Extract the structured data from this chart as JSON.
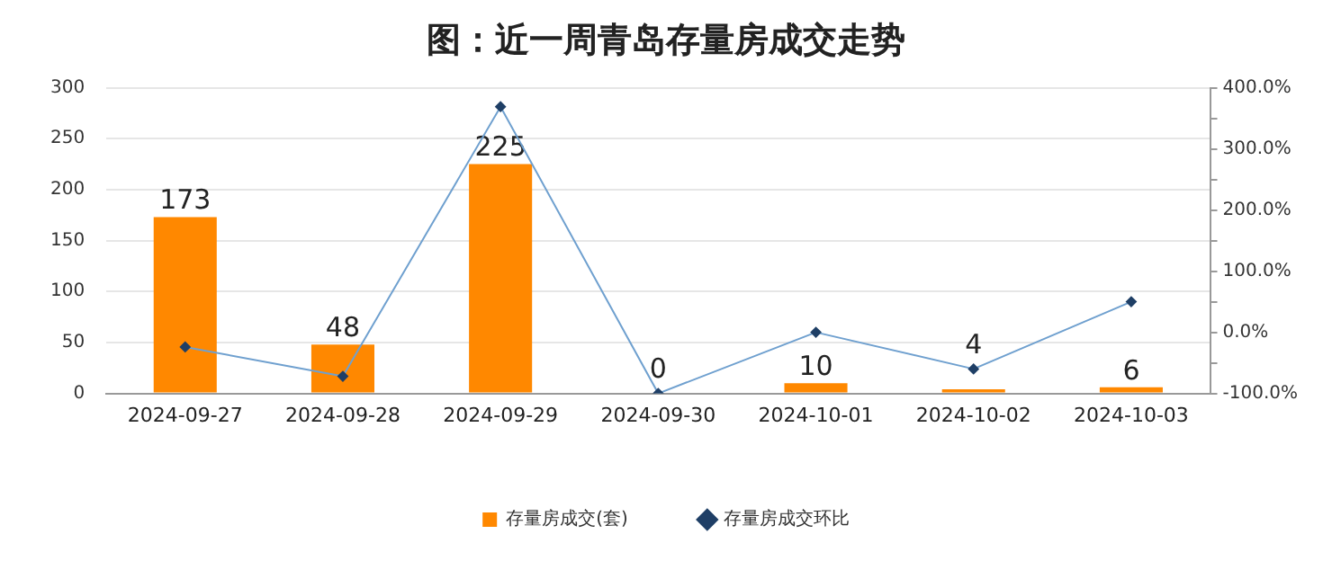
{
  "chart_data": {
    "type": "bar",
    "title": "图：近一周青岛存量房成交走势",
    "categories": [
      "2024-09-27",
      "2024-09-28",
      "2024-09-29",
      "2024-09-30",
      "2024-10-01",
      "2024-10-02",
      "2024-10-03"
    ],
    "series": [
      {
        "name": "存量房成交(套)",
        "color": "#ff8800",
        "values": [
          173,
          48,
          225,
          0,
          10,
          4,
          6
        ],
        "value_labels": [
          "173",
          "48",
          "225",
          "0",
          "10",
          "4",
          "6"
        ]
      },
      {
        "name": "存量房成交环比",
        "type": "line",
        "axis": "y2",
        "color": "#6fa0cf",
        "marker": "diamond",
        "values": [
          -24,
          -72,
          369,
          -100,
          0,
          -60,
          50
        ]
      }
    ],
    "ylim": [
      0,
      300
    ],
    "yticks": [
      0,
      50,
      100,
      150,
      200,
      250,
      300
    ],
    "y2lim": [
      -100,
      400
    ],
    "y2ticks": [
      {
        "value": -100,
        "label": "-100.0%"
      },
      {
        "value": -50,
        "label": null
      },
      {
        "value": 0,
        "label": "0.0%"
      },
      {
        "value": 50,
        "label": null
      },
      {
        "value": 100,
        "label": "100.0%"
      },
      {
        "value": 150,
        "label": null
      },
      {
        "value": 200,
        "label": "200.0%"
      },
      {
        "value": 250,
        "label": null
      },
      {
        "value": 300,
        "label": "300.0%"
      },
      {
        "value": 350,
        "label": null
      },
      {
        "value": 400,
        "label": "400.0%"
      }
    ],
    "grid": "y",
    "legend": "bottom"
  }
}
